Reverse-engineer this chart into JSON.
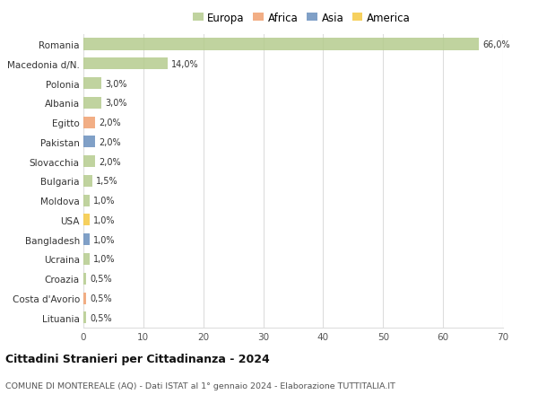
{
  "countries": [
    "Romania",
    "Macedonia d/N.",
    "Polonia",
    "Albania",
    "Egitto",
    "Pakistan",
    "Slovacchia",
    "Bulgaria",
    "Moldova",
    "USA",
    "Bangladesh",
    "Ucraina",
    "Croazia",
    "Costa d'Avorio",
    "Lituania"
  ],
  "values": [
    66.0,
    14.0,
    3.0,
    3.0,
    2.0,
    2.0,
    2.0,
    1.5,
    1.0,
    1.0,
    1.0,
    1.0,
    0.5,
    0.5,
    0.5
  ],
  "labels": [
    "66,0%",
    "14,0%",
    "3,0%",
    "3,0%",
    "2,0%",
    "2,0%",
    "2,0%",
    "1,5%",
    "1,0%",
    "1,0%",
    "1,0%",
    "1,0%",
    "0,5%",
    "0,5%",
    "0,5%"
  ],
  "continents": [
    "Europa",
    "Europa",
    "Europa",
    "Europa",
    "Africa",
    "Asia",
    "Europa",
    "Europa",
    "Europa",
    "America",
    "Asia",
    "Europa",
    "Europa",
    "Africa",
    "Europa"
  ],
  "continent_colors": {
    "Europa": "#b5cc8e",
    "Africa": "#f0a070",
    "Asia": "#6a8fbd",
    "America": "#f5c842"
  },
  "legend_order": [
    "Europa",
    "Africa",
    "Asia",
    "America"
  ],
  "legend_colors": [
    "#b5cc8e",
    "#f0a070",
    "#6a8fbd",
    "#f5c842"
  ],
  "xlim": [
    0,
    70
  ],
  "xticks": [
    0,
    10,
    20,
    30,
    40,
    50,
    60,
    70
  ],
  "title": "Cittadini Stranieri per Cittadinanza - 2024",
  "subtitle": "COMUNE DI MONTEREALE (AQ) - Dati ISTAT al 1° gennaio 2024 - Elaborazione TUTTITALIA.IT",
  "background_color": "#ffffff",
  "grid_color": "#dddddd",
  "bar_height": 0.6
}
